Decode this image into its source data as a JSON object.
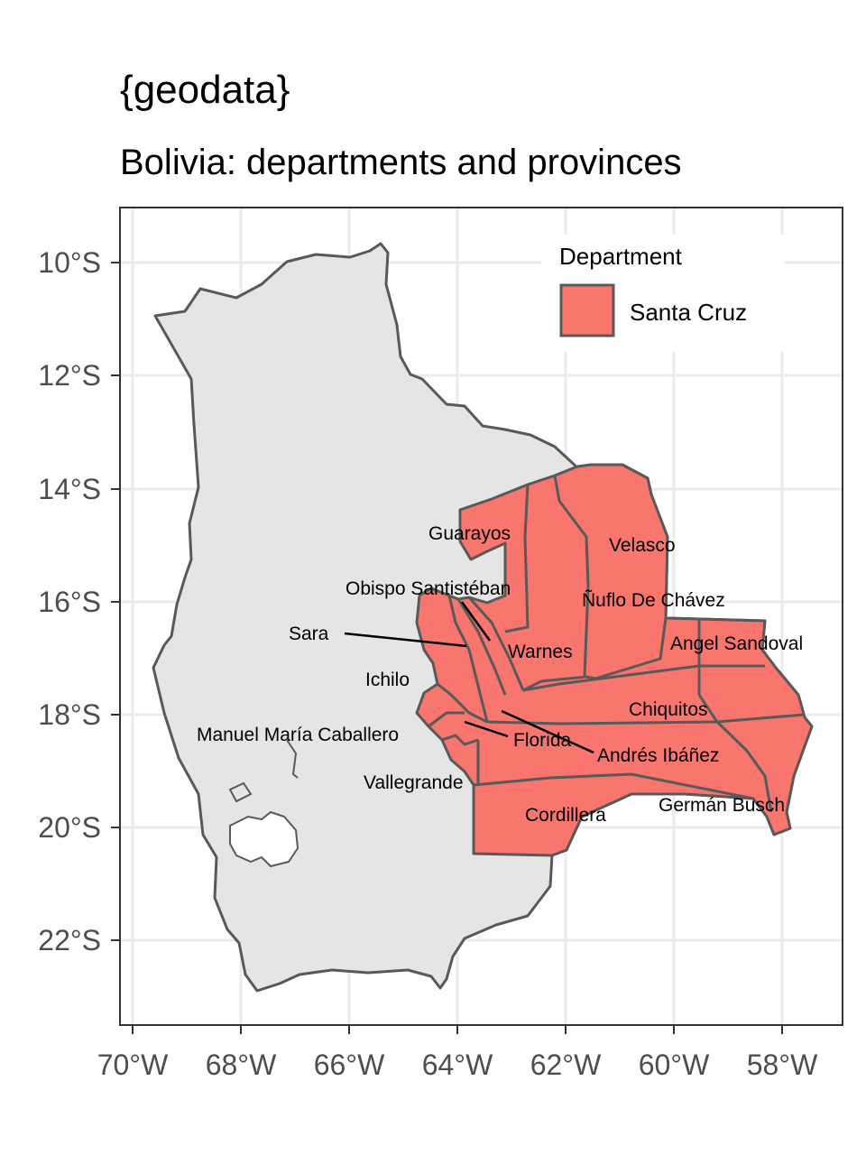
{
  "title": "{geodata}",
  "subtitle": "Bolivia: departments and provinces",
  "axes": {
    "x_ticks": [
      "70°W",
      "68°W",
      "66°W",
      "64°W",
      "62°W",
      "60°W",
      "58°W"
    ],
    "y_ticks": [
      "10°S",
      "12°S",
      "14°S",
      "16°S",
      "18°S",
      "20°S",
      "22°S"
    ]
  },
  "legend": {
    "title": "Department",
    "items": [
      {
        "label": "Santa Cruz",
        "color": "#F8766D"
      }
    ]
  },
  "colors": {
    "highlight": "#F8766D",
    "country_fill": "#E5E5E5",
    "border": "#595959",
    "grid": "#EBEBEB"
  },
  "provinces": [
    "Guarayos",
    "Velasco",
    "Obispo Santistéban",
    "Ñuflo De Chávez",
    "Sara",
    "Warnes",
    "Angel Sandoval",
    "Ichilo",
    "Chiquitos",
    "Manuel María Caballero",
    "Florida",
    "Andrés Ibáñez",
    "Vallegrande",
    "Germán Busch",
    "Cordillera"
  ]
}
